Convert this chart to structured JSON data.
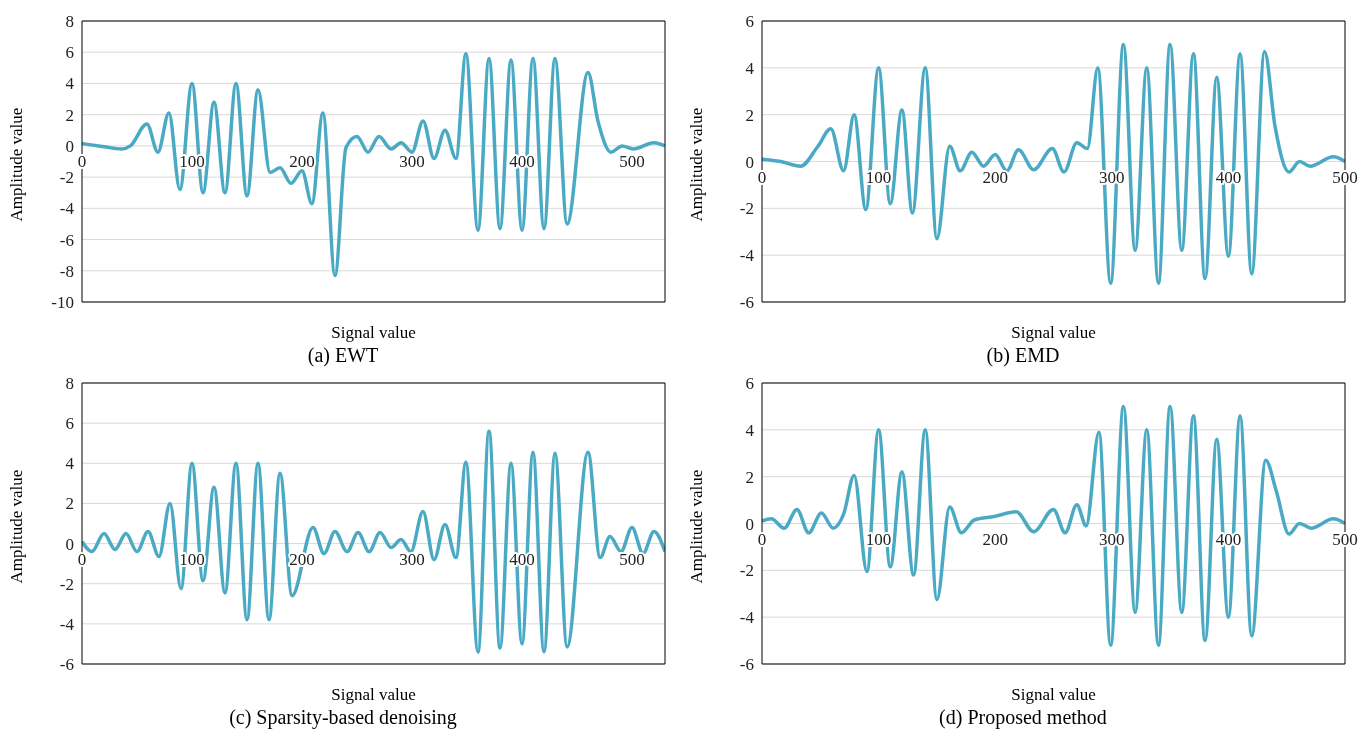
{
  "chart_data": [
    {
      "type": "line",
      "title": "(a) EWT",
      "xlabel": "Signal value",
      "ylabel": "Amplitude value",
      "xlim": [
        0,
        530
      ],
      "xticks": [
        0,
        100,
        200,
        300,
        400,
        500
      ],
      "ylim": [
        -10,
        8
      ],
      "yticks": [
        -10,
        -8,
        -6,
        -4,
        -2,
        0,
        2,
        4,
        6,
        8
      ],
      "grid": "y",
      "series": [
        {
          "color": "#4aaac4",
          "x": [
            0,
            20,
            36,
            44,
            59,
            69,
            79,
            89,
            100,
            110,
            120,
            130,
            140,
            150,
            160,
            171,
            180,
            190,
            200,
            209,
            219,
            230,
            240,
            250,
            260,
            270,
            281,
            290,
            300,
            310,
            320,
            330,
            340,
            349,
            360,
            370,
            380,
            390,
            400,
            410,
            420,
            430,
            441,
            460,
            469,
            481,
            491,
            501,
            520,
            530
          ],
          "values": [
            0.15,
            -0.05,
            -0.2,
            0,
            1.4,
            -0.4,
            2.1,
            -2.8,
            4.0,
            -3.0,
            2.8,
            -3.0,
            4.0,
            -3.2,
            3.6,
            -1.7,
            -1.4,
            -2.4,
            -1.6,
            -3.7,
            2.1,
            -8.3,
            -0.1,
            0.6,
            -0.4,
            0.6,
            -0.2,
            0.2,
            -0.4,
            1.6,
            -0.8,
            1.0,
            -0.8,
            5.9,
            -5.4,
            5.6,
            -5.3,
            5.5,
            -5.4,
            5.6,
            -5.3,
            5.6,
            -5.0,
            4.7,
            1.6,
            -0.4,
            0,
            -0.2,
            0.2,
            0
          ]
        }
      ]
    },
    {
      "type": "line",
      "title": "(b) EMD",
      "xlabel": "Signal value",
      "ylabel": "Amplitude value",
      "xlim": [
        0,
        500
      ],
      "xticks": [
        0,
        100,
        200,
        300,
        400,
        500
      ],
      "ylim": [
        -6,
        6
      ],
      "yticks": [
        -6,
        -4,
        -2,
        0,
        2,
        4,
        6
      ],
      "grid": "y",
      "series": [
        {
          "color": "#4aaac4",
          "x": [
            0,
            16,
            33,
            48,
            59,
            70,
            79,
            89,
            100,
            110,
            120,
            129,
            140,
            150,
            161,
            170,
            180,
            190,
            200,
            210,
            220,
            233,
            249,
            259,
            270,
            279,
            288,
            299,
            310,
            320,
            330,
            340,
            350,
            360,
            370,
            380,
            390,
            400,
            410,
            420,
            431,
            440,
            452,
            461,
            470,
            490,
            500
          ],
          "values": [
            0.1,
            0,
            -0.2,
            0.65,
            1.4,
            -0.4,
            2.0,
            -2.05,
            4.0,
            -1.8,
            2.2,
            -2.2,
            4.0,
            -3.3,
            0.65,
            -0.4,
            0.4,
            -0.2,
            0.3,
            -0.4,
            0.5,
            -0.35,
            0.55,
            -0.45,
            0.8,
            0.55,
            4.0,
            -5.2,
            5.0,
            -3.8,
            4.0,
            -5.2,
            5.0,
            -3.8,
            4.6,
            -5.0,
            3.6,
            -4.05,
            4.6,
            -4.8,
            4.7,
            1.5,
            -0.45,
            0,
            -0.2,
            0.2,
            0
          ]
        }
      ]
    },
    {
      "type": "line",
      "title": "(c) Sparsity-based denoising",
      "xlabel": "Signal value",
      "ylabel": "Amplitude value",
      "xlim": [
        0,
        530
      ],
      "xticks": [
        0,
        100,
        200,
        300,
        400,
        500
      ],
      "ylim": [
        -6,
        8
      ],
      "yticks": [
        -6,
        -4,
        -2,
        0,
        2,
        4,
        6,
        8
      ],
      "grid": "y",
      "series": [
        {
          "color": "#4aaac4",
          "x": [
            0,
            9,
            20,
            30,
            40,
            50,
            60,
            70,
            80,
            90,
            100,
            110,
            120,
            130,
            140,
            150,
            160,
            170,
            180,
            191,
            210,
            220,
            230,
            241,
            251,
            261,
            271,
            281,
            290,
            299,
            310,
            320,
            330,
            340,
            349,
            360,
            370,
            380,
            390,
            400,
            410,
            420,
            430,
            441,
            460,
            471,
            480,
            490,
            500,
            510,
            520,
            530
          ],
          "values": [
            0.1,
            -0.4,
            0.5,
            -0.3,
            0.5,
            -0.4,
            0.6,
            -0.65,
            2.0,
            -2.25,
            4.0,
            -1.85,
            2.8,
            -2.45,
            4.0,
            -3.8,
            4.0,
            -3.8,
            3.5,
            -2.6,
            0.8,
            -0.5,
            0.6,
            -0.4,
            0.55,
            -0.4,
            0.55,
            -0.2,
            0.2,
            -0.4,
            1.6,
            -0.8,
            0.95,
            -0.7,
            4.05,
            -5.4,
            5.6,
            -5.2,
            4.0,
            -5.0,
            4.55,
            -5.4,
            4.5,
            -5.15,
            4.55,
            -0.7,
            0.35,
            -0.4,
            0.8,
            -0.5,
            0.6,
            -0.4
          ]
        }
      ]
    },
    {
      "type": "line",
      "title": "(d) Proposed method",
      "xlabel": "Signal value",
      "ylabel": "Amplitude value",
      "xlim": [
        0,
        500
      ],
      "xticks": [
        0,
        100,
        200,
        300,
        400,
        500
      ],
      "ylim": [
        -6,
        6
      ],
      "yticks": [
        -6,
        -4,
        -2,
        0,
        2,
        4,
        6
      ],
      "grid": "y",
      "series": [
        {
          "color": "#4aaac4",
          "x": [
            0,
            8,
            19,
            30,
            40,
            51,
            61,
            70,
            79,
            90,
            100,
            110,
            120,
            130,
            140,
            150,
            161,
            171,
            182,
            199,
            218,
            233,
            250,
            260,
            270,
            278,
            289,
            299,
            310,
            320,
            330,
            340,
            350,
            360,
            370,
            380,
            390,
            400,
            410,
            420,
            432,
            441,
            452,
            461,
            471,
            490,
            500
          ],
          "values": [
            0.1,
            0.2,
            -0.2,
            0.6,
            -0.4,
            0.45,
            -0.2,
            0.4,
            2.05,
            -2.05,
            4.0,
            -1.85,
            2.2,
            -2.2,
            4.0,
            -3.25,
            0.7,
            -0.4,
            0.15,
            0.3,
            0.5,
            -0.35,
            0.6,
            -0.4,
            0.8,
            -0.1,
            3.9,
            -5.2,
            5.0,
            -3.8,
            4.0,
            -5.2,
            5.0,
            -3.8,
            4.6,
            -5.0,
            3.6,
            -4.0,
            4.6,
            -4.8,
            2.7,
            1.4,
            -0.45,
            0,
            -0.2,
            0.2,
            0
          ]
        }
      ]
    }
  ]
}
